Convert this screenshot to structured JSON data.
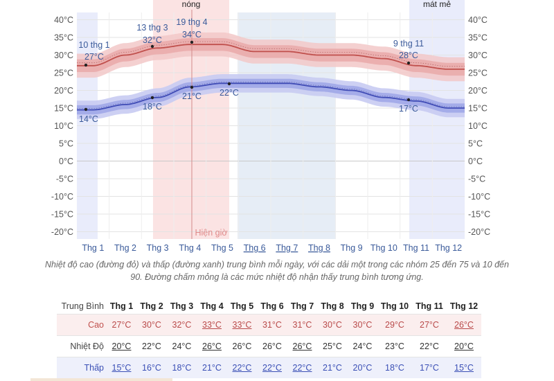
{
  "chart_data": {
    "type": "line",
    "categories": [
      "Thg 1",
      "Thg 2",
      "Thg 3",
      "Thg 4",
      "Thg 5",
      "Thg 6",
      "Thg 7",
      "Thg 8",
      "Thg 9",
      "Thg 10",
      "Thg 11",
      "Thg 12"
    ],
    "underlined_months": [
      "Thg 6",
      "Thg 7",
      "Thg 8"
    ],
    "ylim": [
      -22,
      42
    ],
    "yticks": [
      40,
      35,
      30,
      25,
      20,
      15,
      10,
      5,
      0,
      -5,
      -10,
      -15,
      -20
    ],
    "tick_suffix": "°C",
    "season_labels": {
      "hot": "nóng",
      "cool": "mát mẻ"
    },
    "current_label": "Hiện giờ",
    "series": [
      {
        "role": "high",
        "color": "#c0504d",
        "values": [
          27,
          30,
          32,
          33,
          33,
          31,
          31,
          30,
          30,
          29,
          27,
          26
        ]
      },
      {
        "role": "low",
        "color": "#3f4bb5",
        "values": [
          14.5,
          16,
          18,
          21,
          22,
          22,
          22,
          21,
          20,
          18,
          17,
          15
        ]
      }
    ],
    "annotations": [
      {
        "date": "10 thg 1",
        "value": "27°C"
      },
      {
        "date": "13 thg 3",
        "value": "32°C"
      },
      {
        "date": "19 thg 4",
        "value": "34°C"
      },
      {
        "date": "9 thg 11",
        "value": "28°C"
      },
      {
        "value": "14°C"
      },
      {
        "value": "18°C"
      },
      {
        "value": "21°C"
      },
      {
        "value": "22°C"
      },
      {
        "value": "17°C"
      }
    ]
  },
  "caption": "Nhiệt độ cao (đường đỏ) và thấp (đường xanh) trung bình mỗi ngày, với các dải một trong các nhóm 25 đến 75 và 10 đến 90. Đường chấm mỏng là các mức nhiệt độ nhận thấy trung bình tương ứng.",
  "table": {
    "header_label": "Trung Bình",
    "months": [
      "Thg 1",
      "Thg 2",
      "Thg 3",
      "Thg 4",
      "Thg 5",
      "Thg 6",
      "Thg 7",
      "Thg 8",
      "Thg 9",
      "Thg 10",
      "Thg 11",
      "Thg 12"
    ],
    "rows": [
      {
        "label": "Cao",
        "values": [
          "27°C",
          "30°C",
          "32°C",
          "33°C",
          "33°C",
          "31°C",
          "31°C",
          "30°C",
          "30°C",
          "29°C",
          "27°C",
          "26°C"
        ]
      },
      {
        "label": "Nhiệt Độ",
        "values": [
          "20°C",
          "22°C",
          "24°C",
          "26°C",
          "26°C",
          "26°C",
          "26°C",
          "25°C",
          "24°C",
          "23°C",
          "22°C",
          "20°C"
        ]
      },
      {
        "label": "Thấp",
        "values": [
          "15°C",
          "16°C",
          "18°C",
          "21°C",
          "22°C",
          "22°C",
          "22°C",
          "21°C",
          "20°C",
          "18°C",
          "17°C",
          "15°C"
        ]
      }
    ]
  }
}
